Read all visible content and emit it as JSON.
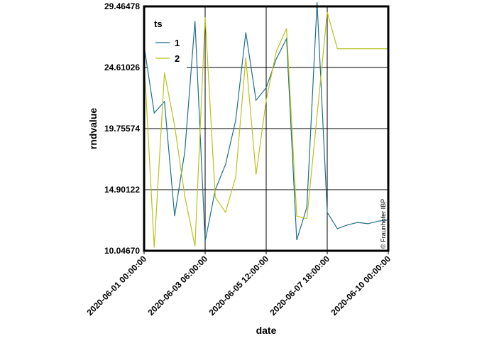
{
  "chart_data": {
    "type": "line",
    "xlabel": "date",
    "ylabel": "rndvalue",
    "x_tick_labels": [
      "2020-06-01 00:00:00",
      "2020-06-03 06:00:00",
      "2020-06-05 12:00:00",
      "2020-06-07 18:00:00",
      "2020-06-10 00:00:00"
    ],
    "y_tick_labels": [
      "10.04670",
      "14.90122",
      "19.75574",
      "24.61026",
      "29.46478"
    ],
    "ylim": [
      10.0467,
      29.46478
    ],
    "xlim": [
      "2020-06-01 00:00:00",
      "2020-06-10 00:00:00"
    ],
    "grid": true,
    "legend": {
      "title": "ts",
      "position": "top-left"
    },
    "annotation": "© Fraunhofer IBP",
    "colors": {
      "1": "#1f6e8c",
      "2": "#b8c21a"
    },
    "series": [
      {
        "name": "1",
        "x": [
          "2020-06-01 00:00:00",
          "2020-06-01 09:00:00",
          "2020-06-01 18:00:00",
          "2020-06-02 03:00:00",
          "2020-06-02 12:00:00",
          "2020-06-02 21:00:00",
          "2020-06-03 06:00:00",
          "2020-06-03 15:00:00",
          "2020-06-04 00:00:00",
          "2020-06-04 09:00:00",
          "2020-06-04 18:00:00",
          "2020-06-05 03:00:00",
          "2020-06-05 12:00:00",
          "2020-06-05 21:00:00",
          "2020-06-06 06:00:00",
          "2020-06-06 15:00:00",
          "2020-06-07 00:00:00",
          "2020-06-07 09:00:00",
          "2020-06-07 18:00:00",
          "2020-06-08 03:00:00",
          "2020-06-08 12:00:00",
          "2020-06-08 21:00:00",
          "2020-06-09 06:00:00",
          "2020-06-09 15:00:00",
          "2020-06-10 00:00:00"
        ],
        "y": [
          26.3,
          21.0,
          21.9,
          12.8,
          17.9,
          28.3,
          10.8,
          14.9,
          16.9,
          20.4,
          27.4,
          22.0,
          23.0,
          25.3,
          26.9,
          10.9,
          13.5,
          29.8,
          13.1,
          11.8,
          12.1,
          12.3,
          12.2,
          12.4,
          12.5
        ]
      },
      {
        "name": "2",
        "x": [
          "2020-06-01 00:00:00",
          "2020-06-01 09:00:00",
          "2020-06-01 18:00:00",
          "2020-06-02 03:00:00",
          "2020-06-02 12:00:00",
          "2020-06-02 21:00:00",
          "2020-06-03 06:00:00",
          "2020-06-03 15:00:00",
          "2020-06-04 00:00:00",
          "2020-06-04 09:00:00",
          "2020-06-04 18:00:00",
          "2020-06-05 03:00:00",
          "2020-06-05 12:00:00",
          "2020-06-05 21:00:00",
          "2020-06-06 06:00:00",
          "2020-06-06 15:00:00",
          "2020-06-07 00:00:00",
          "2020-06-07 09:00:00",
          "2020-06-07 18:00:00",
          "2020-06-08 03:00:00",
          "2020-06-08 12:00:00",
          "2020-06-08 21:00:00",
          "2020-06-09 06:00:00",
          "2020-06-09 15:00:00",
          "2020-06-10 00:00:00"
        ],
        "y": [
          25.2,
          10.3,
          24.2,
          20.0,
          14.4,
          10.4,
          28.6,
          14.3,
          13.1,
          15.9,
          25.4,
          16.1,
          22.0,
          25.9,
          27.7,
          12.8,
          12.6,
          20.8,
          29.0,
          26.1,
          26.1,
          26.1,
          26.1,
          26.1,
          26.1
        ]
      }
    ]
  }
}
